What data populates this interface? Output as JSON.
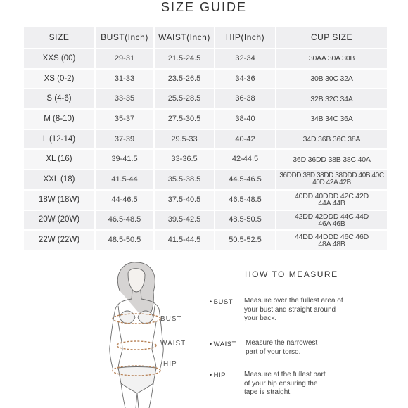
{
  "title": "SIZE GUIDE",
  "table": {
    "headers": [
      "SIZE",
      "BUST(Inch)",
      "WAIST(Inch)",
      "HIP(Inch)",
      "CUP SIZE"
    ],
    "rows": [
      [
        "XXS (00)",
        "29-31",
        "21.5-24.5",
        "32-34",
        "30AA 30A 30B"
      ],
      [
        "XS (0-2)",
        "31-33",
        "23.5-26.5",
        "34-36",
        "30B 30C 32A"
      ],
      [
        "S (4-6)",
        "33-35",
        "25.5-28.5",
        "36-38",
        "32B 32C 34A"
      ],
      [
        "M (8-10)",
        "35-37",
        "27.5-30.5",
        "38-40",
        "34B 34C 36A"
      ],
      [
        "L (12-14)",
        "37-39",
        "29.5-33",
        "40-42",
        "34D 36B 36C 38A"
      ],
      [
        "XL (16)",
        "39-41.5",
        "33-36.5",
        "42-44.5",
        "36D 36DD 38B 38C 40A"
      ],
      [
        "XXL (18)",
        "41.5-44",
        "35.5-38.5",
        "44.5-46.5",
        "36DDD 38D 38DD 38DDD 40B 40C 40D 42A 42B"
      ],
      [
        "18W (18W)",
        "44-46.5",
        "37.5-40.5",
        "46.5-48.5",
        "40DD 40DDD 42C 42D 44A 44B"
      ],
      [
        "20W (20W)",
        "46.5-48.5",
        "39.5-42.5",
        "48.5-50.5",
        "42DD 42DDD 44C 44D 46A 46B"
      ],
      [
        "22W (22W)",
        "48.5-50.5",
        "41.5-44.5",
        "50.5-52.5",
        "44DD 44DDD 46C 46D 48A 48B"
      ]
    ]
  },
  "figure_labels": {
    "bust": "BUST",
    "waist": "WAIST",
    "hip": "HIP"
  },
  "how_to": {
    "title": "HOW TO MEASURE",
    "items": [
      {
        "term": "BUST",
        "description": "Measure over the fullest area of your bust and straight around your back."
      },
      {
        "term": "WAIST",
        "description": "Measure the narrowest part of your torso."
      },
      {
        "term": "HIP",
        "description": "Measure at the fullest part of your hip ensuring the tape is straight."
      }
    ]
  },
  "colors": {
    "cell": "#efeff1",
    "cell_alt": "#f6f6f7",
    "tape": "#b8845a"
  }
}
